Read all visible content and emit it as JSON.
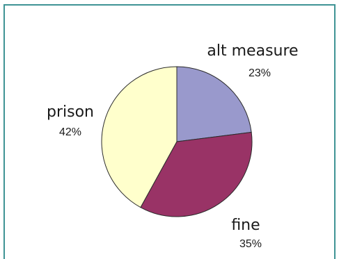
{
  "chart_data": {
    "type": "pie",
    "title": "",
    "slices": [
      {
        "name": "alt measure",
        "label": "23%",
        "value": 23,
        "color": "#9999cc"
      },
      {
        "name": "fine",
        "label": "35%",
        "value": 35,
        "color": "#993366"
      },
      {
        "name": "prison",
        "label": "42%",
        "value": 42,
        "color": "#ffffcc"
      }
    ],
    "start_angle_deg": 0,
    "direction": "clockwise",
    "legend": "none"
  }
}
